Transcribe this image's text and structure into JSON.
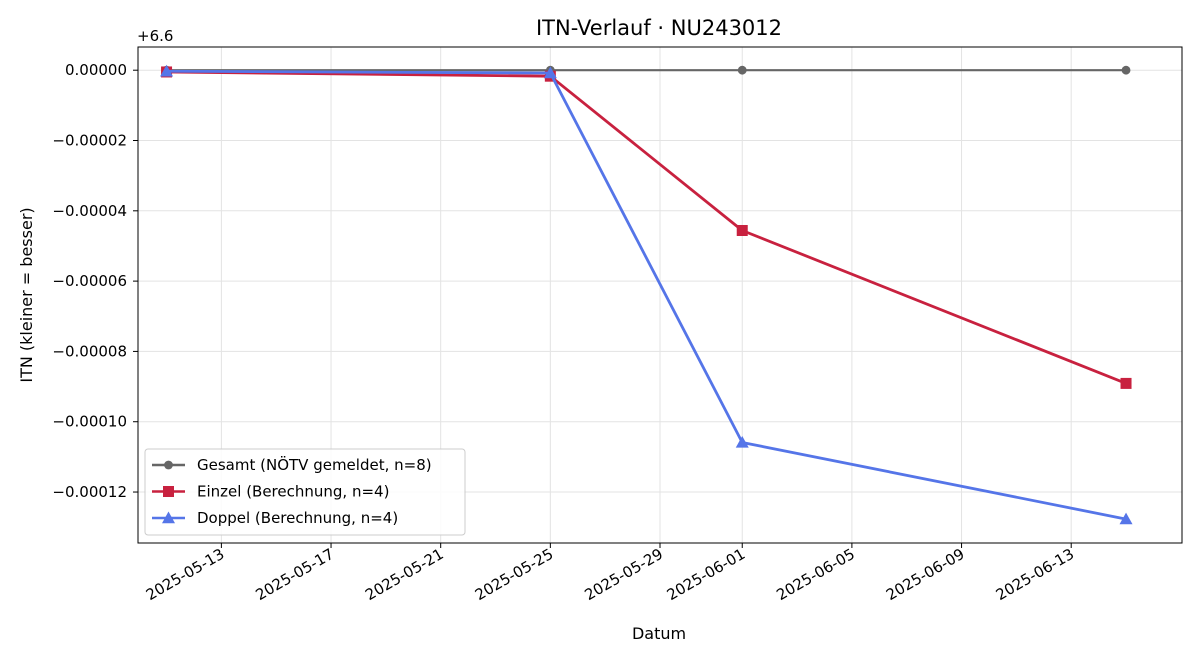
{
  "chart_data": {
    "type": "line",
    "title": "ITN-Verlauf · NU243012",
    "xlabel": "Datum",
    "ylabel": "ITN  (kleiner = besser)",
    "y_offset_label": "+6.6",
    "y_offset": 6.6,
    "xlim": [
      "2025-05-09T23:00:00",
      "2025-06-17T01:00:00"
    ],
    "ylim": [
      -0.0001345,
      6.6e-06
    ],
    "x_ticks": [
      "2025-05-13",
      "2025-05-17",
      "2025-05-21",
      "2025-05-25",
      "2025-05-29",
      "2025-06-01",
      "2025-06-05",
      "2025-06-09",
      "2025-06-13"
    ],
    "y_ticks": [
      0.0,
      -2e-05,
      -4e-05,
      -6e-05,
      -8e-05,
      -0.0001,
      -0.00012
    ],
    "y_tick_labels": [
      "0.00000",
      "−0.00002",
      "−0.00004",
      "−0.00006",
      "−0.00008",
      "−0.00010",
      "−0.00012"
    ],
    "grid": true,
    "legend_position": "lower-left",
    "series": [
      {
        "name": "Gesamt (NÖTV gemeldet, n=8)",
        "color": "#666666",
        "marker": "circle",
        "x": [
          "2025-05-11",
          "2025-05-25",
          "2025-06-01",
          "2025-06-15"
        ],
        "y": [
          0.0,
          0.0,
          0.0,
          0.0
        ]
      },
      {
        "name": "Einzel (Berechnung, n=4)",
        "color": "#c8213f",
        "marker": "square",
        "x": [
          "2025-05-11",
          "2025-05-25",
          "2025-06-01",
          "2025-06-15"
        ],
        "y": [
          -5e-07,
          -1.7e-06,
          -4.56e-05,
          -8.91e-05
        ]
      },
      {
        "name": "Doppel (Berechnung, n=4)",
        "color": "#5575e8",
        "marker": "triangle",
        "x": [
          "2025-05-11",
          "2025-05-25",
          "2025-06-01",
          "2025-06-15"
        ],
        "y": [
          -3e-07,
          -8e-07,
          -0.0001059,
          -0.0001277
        ]
      }
    ]
  }
}
